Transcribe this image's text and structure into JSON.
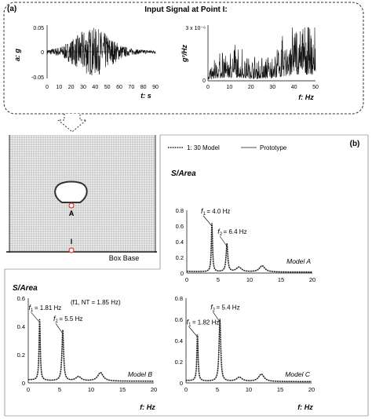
{
  "panel_a": {
    "label": "(a)",
    "title": "Input Signal at Point I:",
    "left_plot": {
      "y_label": "a: g",
      "x_label": "t: s",
      "y_ticks": [
        "0.05",
        "0",
        "-0.05"
      ],
      "x_ticks": [
        "0",
        "10",
        "20",
        "30",
        "40",
        "50",
        "60",
        "70",
        "80",
        "90"
      ]
    },
    "right_plot": {
      "y_label": "g²/Hz",
      "y_ticks": [
        "3 x 10⁻⁶",
        "0"
      ],
      "x_label": "f: Hz",
      "x_ticks": [
        "0",
        "10",
        "20",
        "30",
        "40",
        "50"
      ]
    }
  },
  "schematic": {
    "point_a_label": "A",
    "point_i_label": "I",
    "box_base_label": "Box Base"
  },
  "panel_b": {
    "label": "(b)",
    "legend": {
      "model_label": "1: 30 Model",
      "prototype_label": "Prototype"
    }
  },
  "chart_data": [
    {
      "id": "model_a",
      "type": "line",
      "ylabel": "S/Area",
      "annotation": "Model A",
      "xlim": [
        0,
        20
      ],
      "ylim": [
        0,
        0.8
      ],
      "x_ticks": [
        "0",
        "5",
        "10",
        "15",
        "20"
      ],
      "y_ticks": [
        "0",
        "0.2",
        "0.4",
        "0.6",
        "0.8"
      ],
      "peaks": [
        {
          "label_f": "f",
          "label_sub": "1",
          "label_text": "= 4.0 Hz",
          "x": 4.0,
          "y": 0.62
        },
        {
          "label_f": "f",
          "label_sub": "2",
          "label_text": "= 6.4 Hz",
          "x": 6.4,
          "y": 0.36
        }
      ],
      "secondary_bumps": [
        {
          "x": 8.3,
          "y": 0.06
        },
        {
          "x": 12.0,
          "y": 0.08
        }
      ],
      "series": [
        {
          "name": "1: 30 Model"
        },
        {
          "name": "Prototype"
        }
      ]
    },
    {
      "id": "model_b",
      "type": "line",
      "ylabel": "S/Area",
      "annotation": "Model B",
      "extra_note": "(f1, NT = 1.85 Hz)",
      "extra_note_color": "#d9342b",
      "xlim": [
        0,
        20
      ],
      "ylim": [
        0,
        0.6
      ],
      "x_ticks": [
        "0",
        "5",
        "10",
        "15",
        "20"
      ],
      "y_ticks": [
        "0",
        "0.2",
        "0.4",
        "0.6"
      ],
      "peaks": [
        {
          "label_f": "f",
          "label_sub": "1",
          "label_text": "= 1.81 Hz",
          "x": 1.81,
          "y": 0.44
        },
        {
          "label_f": "f",
          "label_sub": "2",
          "label_text": "= 5.5 Hz",
          "x": 5.5,
          "y": 0.36
        }
      ],
      "secondary_bumps": [
        {
          "x": 8.0,
          "y": 0.03
        },
        {
          "x": 11.5,
          "y": 0.06
        }
      ],
      "series": [
        {
          "name": "1: 30 Model"
        },
        {
          "name": "Prototype"
        }
      ]
    },
    {
      "id": "model_c",
      "type": "line",
      "ylabel": "",
      "annotation": "Model C",
      "xlabel": "f: Hz",
      "xlim": [
        0,
        20
      ],
      "ylim": [
        0,
        0.8
      ],
      "x_ticks": [
        "0",
        "5",
        "10",
        "15",
        "20"
      ],
      "y_ticks": [
        "0",
        "0.2",
        "0.4",
        "0.6",
        "0.8"
      ],
      "peaks": [
        {
          "label_f": "f",
          "label_sub": "1",
          "label_text": "= 1.82 Hz",
          "x": 1.82,
          "y": 0.45
        },
        {
          "label_f": "f",
          "label_sub": "2",
          "label_text": "= 5.4 Hz",
          "x": 5.4,
          "y": 0.59
        }
      ],
      "secondary_bumps": [
        {
          "x": 8.5,
          "y": 0.04
        },
        {
          "x": 12.0,
          "y": 0.07
        }
      ],
      "series": [
        {
          "name": "1: 30 Model"
        },
        {
          "name": "Prototype"
        }
      ]
    }
  ],
  "colors": {
    "annotation_blue": "#7fa6c9",
    "note_red": "#d9342b",
    "point_red": "#d9342b",
    "soil_gray": "#c9c9c9",
    "model_line": "#1a1a1a",
    "prototype_line": "#8a8a8a"
  },
  "b_xlabel": "f: Hz"
}
